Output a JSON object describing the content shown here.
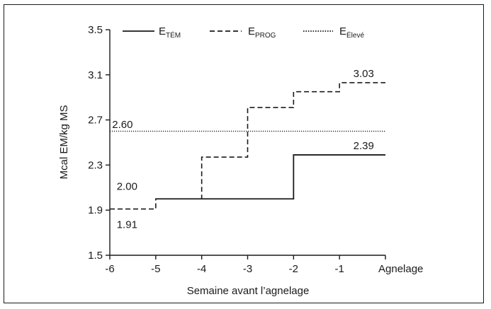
{
  "chart_data": {
    "type": "line",
    "xlabel": "Semaine avant l’agnelage",
    "ylabel": "Mcal  EM/kg MS",
    "ylim": [
      1.5,
      3.5
    ],
    "xlim": [
      -6,
      0
    ],
    "yticks": [
      1.5,
      1.9,
      2.3,
      2.7,
      3.1,
      3.5
    ],
    "yticklabels": [
      "1.5",
      "1.9",
      "2.3",
      "2.7",
      "3.1",
      "3.5"
    ],
    "xticks": [
      -6,
      -5,
      -4,
      -3,
      -2,
      -1,
      0
    ],
    "xticklabels": [
      "-6",
      "-5",
      "-4",
      "-3",
      "-2",
      "-1",
      "Agnelage"
    ],
    "grid": false,
    "legend_position": "top",
    "series": [
      {
        "name_main": "E",
        "name_sub": "TÉM",
        "style": "solid",
        "steps": [
          {
            "x0": -5,
            "x1": -2,
            "y": 2.0
          },
          {
            "x0": -2,
            "x1": 0,
            "y": 2.39
          }
        ]
      },
      {
        "name_main": "E",
        "name_sub": "PROG",
        "style": "dashed",
        "steps": [
          {
            "x0": -6,
            "x1": -5,
            "y": 1.91
          },
          {
            "x0": -5,
            "x1": -4,
            "y": 2.0
          },
          {
            "x0": -4,
            "x1": -3,
            "y": 2.37
          },
          {
            "x0": -3,
            "x1": -2,
            "y": 2.81
          },
          {
            "x0": -2,
            "x1": -1,
            "y": 2.95
          },
          {
            "x0": -1,
            "x1": 0,
            "y": 3.03
          }
        ]
      },
      {
        "name_main": "E",
        "name_sub": "Élevé",
        "style": "dotted",
        "steps": [
          {
            "x0": -6,
            "x1": 0,
            "y": 2.6
          }
        ]
      }
    ],
    "annotations": [
      {
        "text": "2.60",
        "x": -5.95,
        "y": 2.63
      },
      {
        "text": "2.00",
        "x": -5.85,
        "y": 2.08
      },
      {
        "text": "1.91",
        "x": -5.85,
        "y": 1.74
      },
      {
        "text": "2.39",
        "x": -0.7,
        "y": 2.44
      },
      {
        "text": "3.03",
        "x": -0.7,
        "y": 3.08
      }
    ]
  }
}
